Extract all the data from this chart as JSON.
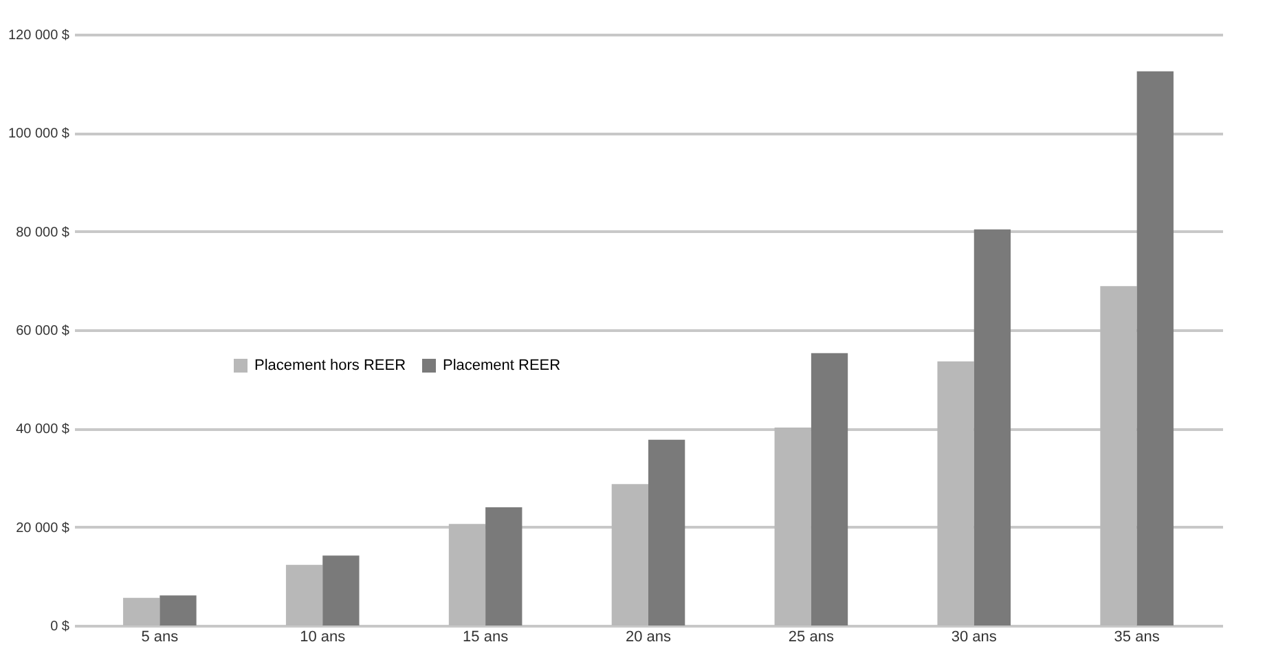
{
  "chart_data": {
    "type": "bar",
    "categories": [
      "5 ans",
      "10 ans",
      "15 ans",
      "20 ans",
      "25 ans",
      "30 ans",
      "35 ans"
    ],
    "series": [
      {
        "name": "Placement hors REER",
        "color": "#b8b8b8",
        "values": [
          5600,
          12300,
          20600,
          28700,
          40200,
          53600,
          68900
        ]
      },
      {
        "name": "Placement REER",
        "color": "#7a7a7a",
        "values": [
          6100,
          14200,
          24000,
          37700,
          55300,
          80400,
          112500
        ]
      }
    ],
    "ylim": [
      0,
      120000
    ],
    "yticks": [
      {
        "value": 0,
        "label": "0 $"
      },
      {
        "value": 20000,
        "label": "20 000 $"
      },
      {
        "value": 40000,
        "label": "40 000 $"
      },
      {
        "value": 60000,
        "label": "60 000 $"
      },
      {
        "value": 80000,
        "label": "80 000 $"
      },
      {
        "value": 100000,
        "label": "100 000 $"
      },
      {
        "value": 120000,
        "label": "120 000 $"
      }
    ],
    "grid": "y",
    "legend": "left"
  }
}
